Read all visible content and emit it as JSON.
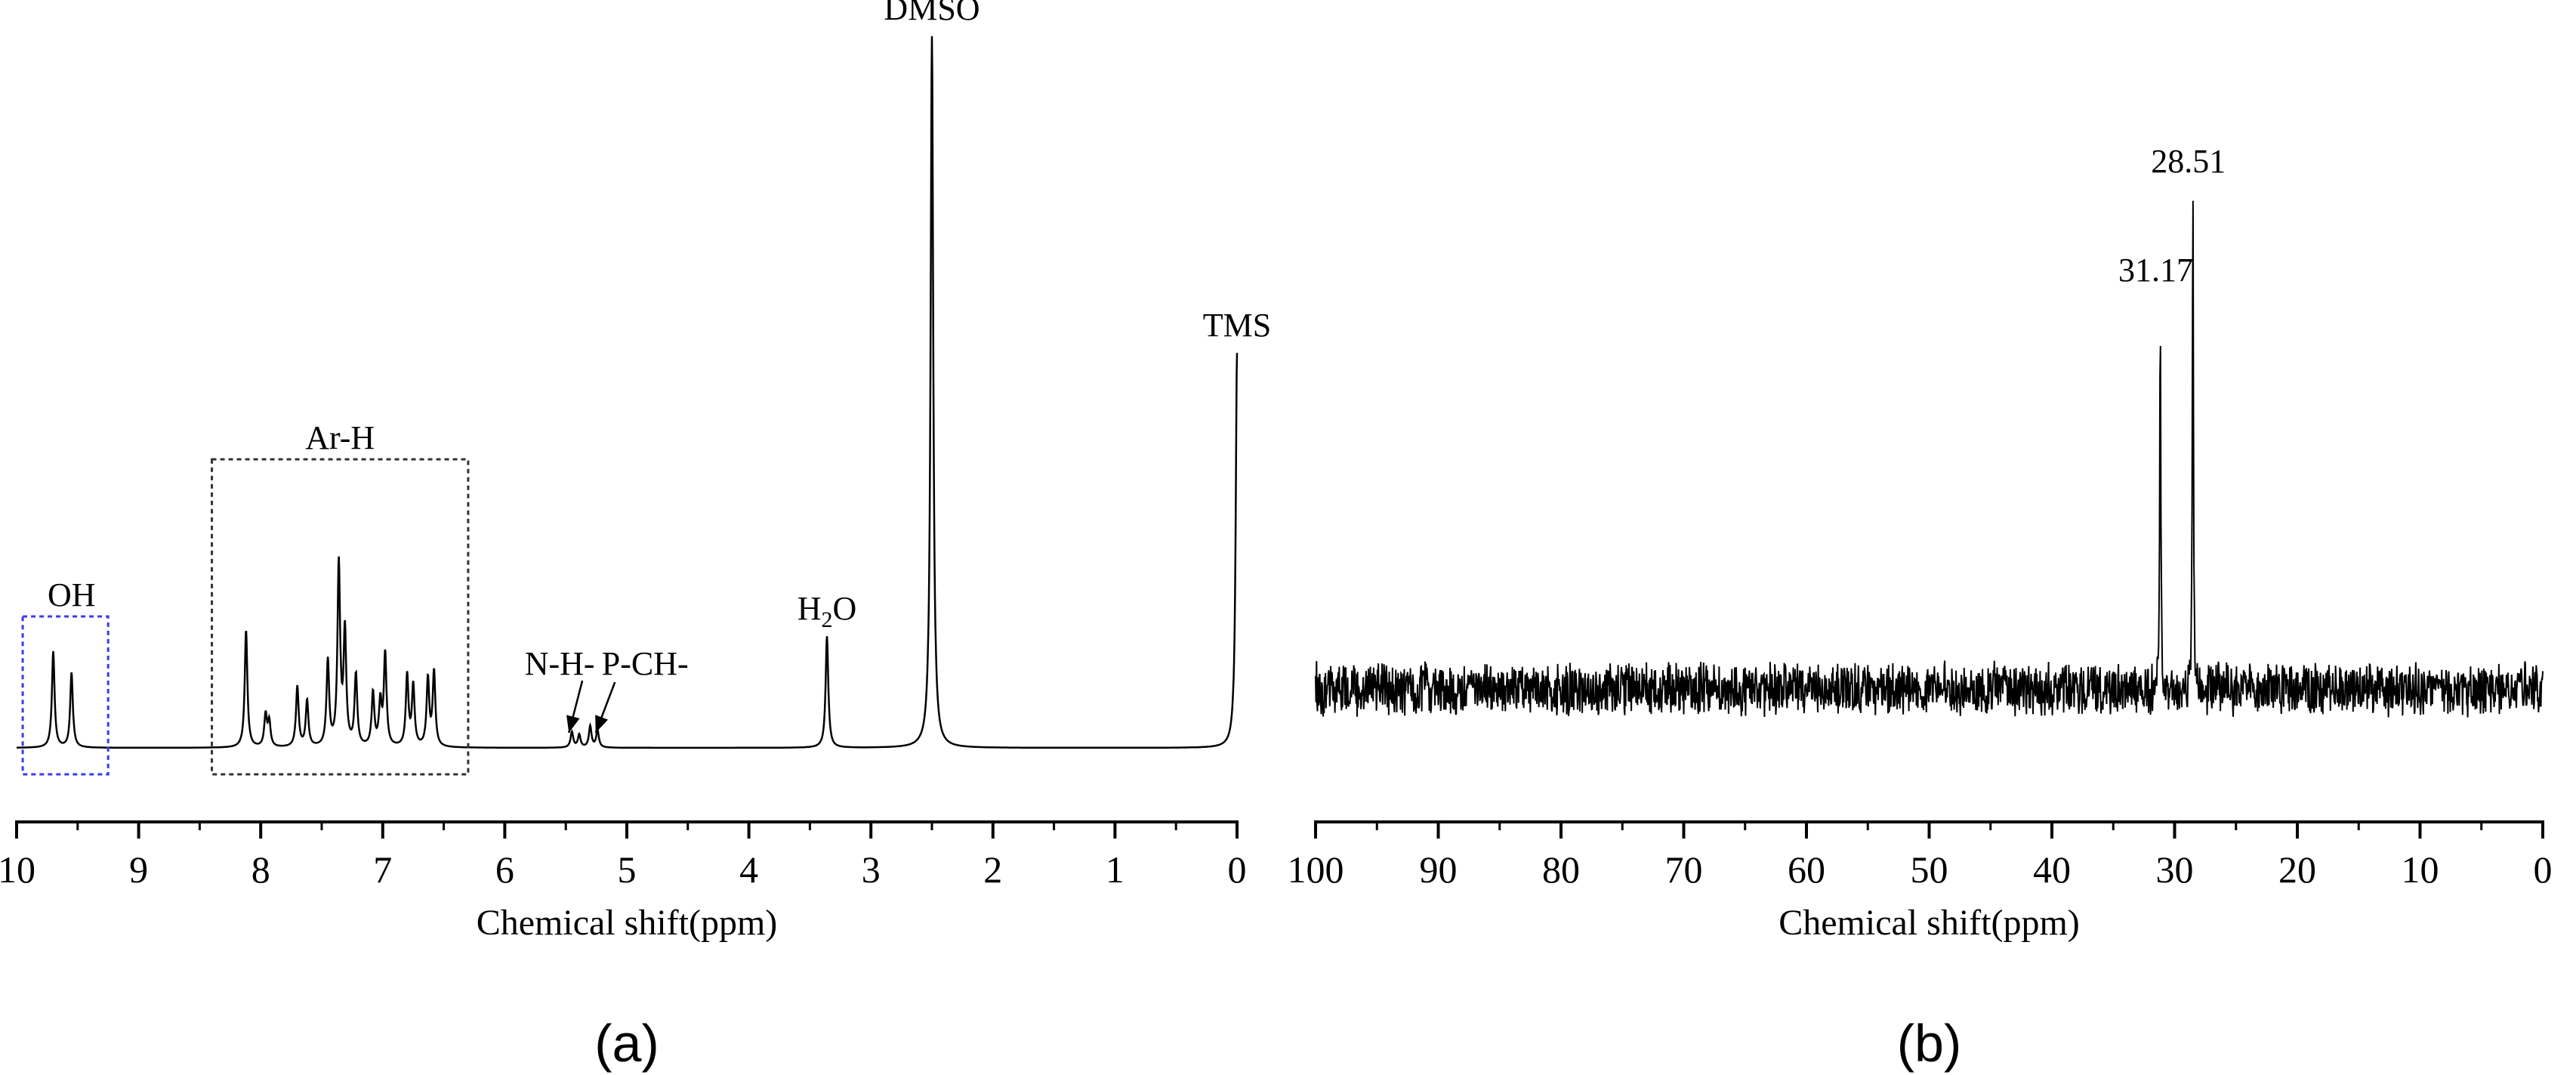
{
  "chart_data": [
    {
      "type": "line",
      "panel_label": "(a)",
      "xlabel": "Chemical shift(ppm)",
      "x_reversed": true,
      "xlim": [
        10,
        0
      ],
      "x_ticks": [
        10,
        9,
        8,
        7,
        6,
        5,
        4,
        3,
        2,
        1,
        0
      ],
      "y_axis_visible": false,
      "grid": false,
      "series": [
        {
          "peaks": [
            {
              "x": 9.7,
              "y": 0.135
            },
            {
              "x": 9.55,
              "y": 0.105
            },
            {
              "x": 8.12,
              "y": 0.165
            },
            {
              "x": 7.96,
              "y": 0.045
            },
            {
              "x": 7.93,
              "y": 0.035
            },
            {
              "x": 7.7,
              "y": 0.085
            },
            {
              "x": 7.62,
              "y": 0.065
            },
            {
              "x": 7.45,
              "y": 0.12
            },
            {
              "x": 7.36,
              "y": 0.255
            },
            {
              "x": 7.31,
              "y": 0.16
            },
            {
              "x": 7.22,
              "y": 0.1
            },
            {
              "x": 7.08,
              "y": 0.075
            },
            {
              "x": 7.02,
              "y": 0.06
            },
            {
              "x": 6.98,
              "y": 0.13
            },
            {
              "x": 6.8,
              "y": 0.1
            },
            {
              "x": 6.75,
              "y": 0.085
            },
            {
              "x": 6.63,
              "y": 0.095
            },
            {
              "x": 6.58,
              "y": 0.105
            },
            {
              "x": 5.45,
              "y": 0.022
            },
            {
              "x": 5.39,
              "y": 0.018
            },
            {
              "x": 5.3,
              "y": 0.03
            },
            {
              "x": 5.24,
              "y": 0.024
            },
            {
              "x": 3.36,
              "y": 0.157
            },
            {
              "x": 2.5,
              "y": 1.0
            },
            {
              "x": 0.0,
              "y": 0.555
            }
          ]
        }
      ],
      "annotations": [
        {
          "text": "OH",
          "x": 9.55,
          "box": {
            "x_from": 9.95,
            "x_to": 9.25,
            "style": "dotted",
            "color": "#3a3af0"
          }
        },
        {
          "text": "Ar-H",
          "x": 7.35,
          "box": {
            "x_from": 8.4,
            "x_to": 6.3,
            "style": "dotted",
            "color": "#333333"
          }
        },
        {
          "text": "N-H-",
          "x": 5.55,
          "arrow_to": 5.45
        },
        {
          "text": "P-CH-",
          "x": 4.85,
          "arrow_to": 5.28
        },
        {
          "text": "H",
          "subscript": "2",
          "suffix": "O",
          "x": 3.36
        },
        {
          "text": "DMSO",
          "x": 2.5
        },
        {
          "text": "TMS",
          "x": 0.0
        }
      ]
    },
    {
      "type": "line",
      "panel_label": "(b)",
      "xlabel": "Chemical shift(ppm)",
      "x_reversed": true,
      "xlim": [
        100,
        0
      ],
      "x_ticks": [
        100,
        90,
        80,
        70,
        60,
        50,
        40,
        30,
        20,
        10,
        0
      ],
      "y_axis_visible": false,
      "grid": false,
      "series": [
        {
          "peaks": [
            {
              "x": 31.17,
              "y": 0.78
            },
            {
              "x": 28.51,
              "y": 1.0
            }
          ],
          "noise_level": 0.14
        }
      ],
      "annotations": [
        {
          "text": "31.17",
          "x": 31.17
        },
        {
          "text": "28.51",
          "x": 28.51
        }
      ]
    }
  ]
}
